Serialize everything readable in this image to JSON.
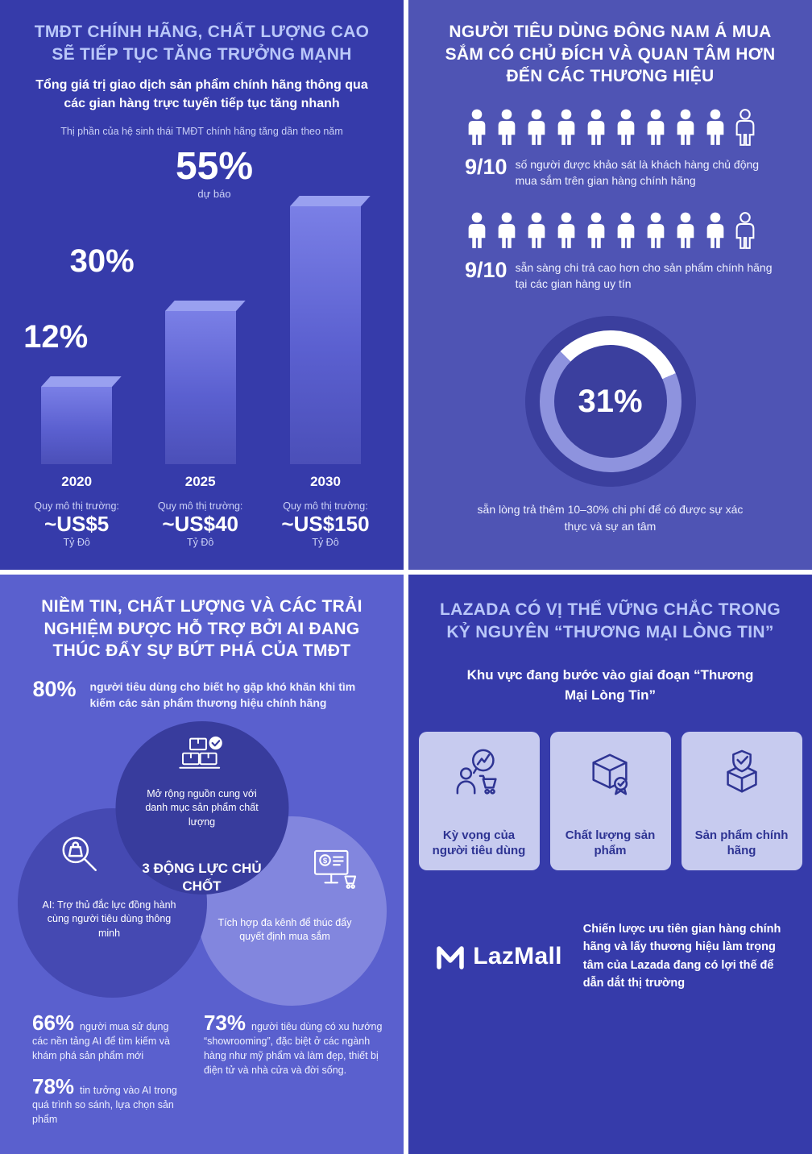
{
  "colors": {
    "bg_dark": "#363baa",
    "bg_medium": "#4f54b4",
    "bg_light": "#5a60ce",
    "title_lavender": "#b9c7f9",
    "bar_fill": "#5b60d0",
    "bar_top": "#99a0f0",
    "donut_ring": "#8e93de",
    "donut_arc": "#ffffff",
    "card_bg": "#c7cbef",
    "navy_text": "#2e3493"
  },
  "chart_data": [
    {
      "type": "bar",
      "title": "Thị phần của hệ sinh thái TMĐT chính hãng tăng dần theo năm",
      "categories": [
        "2020",
        "2025",
        "2030"
      ],
      "values": [
        12,
        30,
        55
      ],
      "value_labels": [
        "12%",
        "30%",
        "55%"
      ],
      "forecast_note": "dự báo",
      "market_label": "Quy mô thị trường:",
      "market_values": [
        "~US$5",
        "~US$40",
        "~US$150"
      ],
      "market_unit": "Tỷ Đô",
      "xlabel": "",
      "ylabel": "",
      "ylim": [
        0,
        60
      ],
      "grid": false,
      "legend": false
    },
    {
      "type": "pie",
      "title": "sẵn lòng trả thêm 10–30% chi phí để có được sự xác thực và sự an tâm",
      "categories": [
        "sẵn lòng trả thêm",
        "còn lại"
      ],
      "values": [
        31,
        69
      ],
      "center_label": "31%"
    }
  ],
  "q1": {
    "title": "TMĐT CHÍNH HÃNG, CHẤT LƯỢNG CAO SẼ TIẾP TỤC TĂNG TRƯỞNG MẠNH",
    "subtitle": "Tổng giá trị giao dịch sản phẩm chính hãng thông qua các gian hàng trực tuyến tiếp tục tăng nhanh"
  },
  "q2": {
    "title": "NGƯỜI TIÊU DÙNG ĐÔNG NAM Á MUA SẮM CÓ CHỦ ĐÍCH VÀ QUAN TÂM HƠN ĐẾN CÁC THƯƠNG HIỆU",
    "stats": [
      {
        "ratio": "9/10",
        "filled": 9,
        "total": 10,
        "text": "số người được khảo sát là khách hàng chủ động mua sắm trên gian hàng chính hãng"
      },
      {
        "ratio": "9/10",
        "filled": 9,
        "total": 10,
        "text": "sẵn sàng chi trả cao hơn cho sản phẩm chính hãng tại các gian hàng uy tín"
      }
    ]
  },
  "q3": {
    "title": "NIỀM TIN, CHẤT LƯỢNG VÀ CÁC TRẢI NGHIỆM ĐƯỢC HỖ TRỢ BỞI AI ĐANG THÚC ĐẨY SỰ BỨT PHÁ CỦA TMĐT",
    "stat80": {
      "pct": "80%",
      "text": "người tiêu dùng cho biết họ gặp khó khăn khi tìm kiếm các sản phẩm thương hiệu chính hãng"
    },
    "venn": {
      "center": "3 ĐỘNG LỰC CHỦ CHỐT",
      "top": "Mở rộng nguồn cung với danh mục sản phẩm chất lượng",
      "left": "AI: Trợ thủ đắc lực đồng hành cùng người tiêu dùng thông minh",
      "right": "Tích hợp đa kênh để thúc đẩy quyết định mua sắm"
    },
    "stats": [
      {
        "pct": "66%",
        "text": "người mua sử dụng các nền tảng AI để tìm kiếm và khám phá sản phẩm mới"
      },
      {
        "pct": "73%",
        "text": "người tiêu dùng có xu hướng “showrooming”, đặc biệt ở các ngành hàng như mỹ phẩm và làm đẹp, thiết bị điện tử và nhà cửa và đời sống."
      },
      {
        "pct": "78%",
        "text": "tin tưởng vào AI trong quá trình so sánh, lựa chọn sản phẩm"
      }
    ]
  },
  "q4": {
    "title": "LAZADA CÓ VỊ THẾ VỮNG CHẮC TRONG KỶ NGUYÊN “THƯƠNG MẠI LÒNG TIN”",
    "subtitle": "Khu vực đang bước vào giai đoạn “Thương Mại Lòng Tin”",
    "cards": [
      {
        "label": "Kỳ vọng của người tiêu dùng"
      },
      {
        "label": "Chất lượng sản phẩm"
      },
      {
        "label": "Sản phẩm chính hãng"
      }
    ],
    "logo_text": "LazMall",
    "paragraph": "Chiến lược ưu tiên gian hàng chính hãng và lấy thương hiệu làm trọng tâm của Lazada đang có lợi thế để dẫn dắt thị trường"
  }
}
